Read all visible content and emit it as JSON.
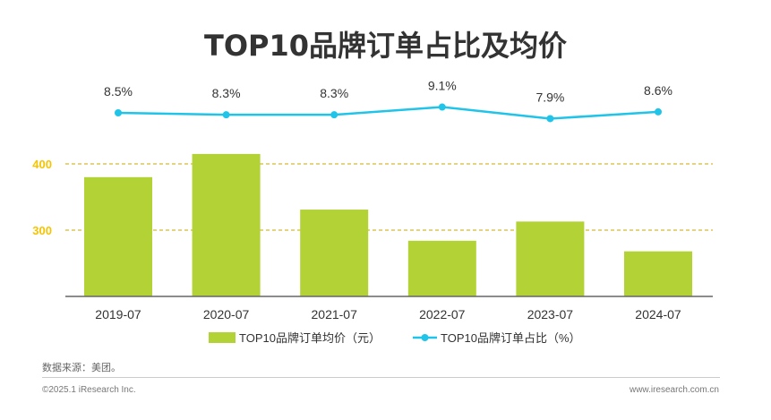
{
  "chart_data": {
    "title": "TOP10品牌订单占比及均价",
    "type": "bar+line",
    "categories": [
      "2019-07",
      "2020-07",
      "2021-07",
      "2022-07",
      "2023-07",
      "2024-07"
    ],
    "series": [
      {
        "name": "TOP10品牌订单均价（元）",
        "type": "bar",
        "color": "#b2d235",
        "values": [
          380,
          415,
          331,
          284,
          313,
          268
        ]
      },
      {
        "name": "TOP10品牌订单占比（%）",
        "type": "line",
        "color": "#1fc4e8",
        "values": [
          8.5,
          8.3,
          8.3,
          9.1,
          7.9,
          8.6
        ],
        "labels": [
          "8.5%",
          "8.3%",
          "8.3%",
          "9.1%",
          "7.9%",
          "8.6%"
        ]
      }
    ],
    "yticks": [
      "400",
      "300"
    ],
    "ylim": [
      200,
      420
    ],
    "grid": "dashed at 300 and 400",
    "legend": "bottom"
  },
  "footer": {
    "source": "数据来源：美团。",
    "copyright": "©2025.1 iResearch Inc.",
    "website": "www.iresearch.com.cn"
  }
}
